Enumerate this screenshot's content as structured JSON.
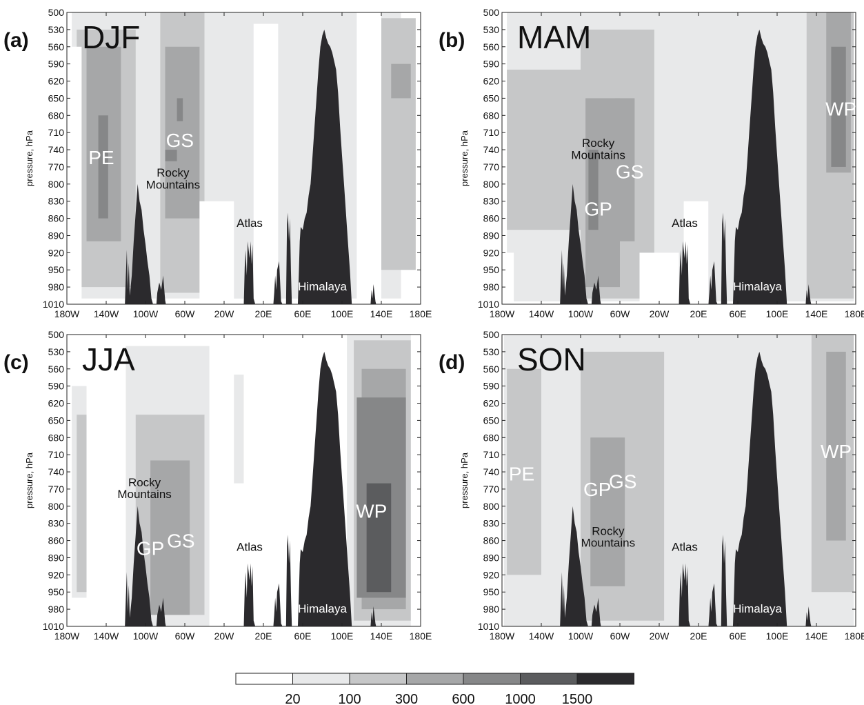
{
  "colors": {
    "levels": [
      "#ffffff",
      "#e8e9ea",
      "#c6c7c8",
      "#a6a7a8",
      "#868788",
      "#5b5c5e",
      "#2b2a2d"
    ],
    "terrain": "#2b2a2d"
  },
  "legend": {
    "ticks": [
      "20",
      "100",
      "300",
      "600",
      "1000",
      "1500"
    ]
  },
  "chart_data": [
    {
      "type": "heatmap",
      "panel_label": "(a)",
      "season": "DJF",
      "ylabel": "pressure, hPa",
      "xlim": [
        -180,
        180
      ],
      "ylim": [
        1010,
        500
      ],
      "y_ticks": [
        "500",
        "530",
        "560",
        "590",
        "620",
        "650",
        "680",
        "710",
        "740",
        "770",
        "800",
        "830",
        "860",
        "890",
        "920",
        "950",
        "980",
        "1010"
      ],
      "x_ticks": [
        "180W",
        "140W",
        "100W",
        "60W",
        "20W",
        "20E",
        "60E",
        "100E",
        "140E",
        "180E"
      ],
      "x_tick_values": [
        -180,
        -140,
        -100,
        -60,
        -20,
        20,
        60,
        100,
        140,
        180
      ],
      "levels": [
        "20",
        "100",
        "300",
        "600",
        "1000",
        "1500"
      ],
      "labels": [
        {
          "text": "PE",
          "lon": -145,
          "p": 765,
          "color": "white",
          "big": true
        },
        {
          "text": "GS",
          "lon": -65,
          "p": 735,
          "color": "white",
          "big": true
        },
        {
          "text": "Rocky",
          "lon": -72,
          "p": 787,
          "color": "black",
          "big": false
        },
        {
          "text": "Mountains",
          "lon": -72,
          "p": 808,
          "color": "black",
          "big": false
        },
        {
          "text": "Atlas",
          "lon": 6,
          "p": 875,
          "color": "black",
          "big": false
        },
        {
          "text": "Himalaya",
          "lon": 80,
          "p": 986,
          "color": "white",
          "big": false
        }
      ],
      "regions": [
        {
          "lon": [
            -175,
            160
          ],
          "p": [
            500,
            1000
          ],
          "level": 1
        },
        {
          "lon": [
            -170,
            -110
          ],
          "p": [
            530,
            980
          ],
          "level": 2
        },
        {
          "lon": [
            -85,
            -35
          ],
          "p": [
            500,
            990
          ],
          "level": 2
        },
        {
          "lon": [
            135,
            175
          ],
          "p": [
            510,
            950
          ],
          "level": 2
        },
        {
          "lon": [
            -160,
            -125
          ],
          "p": [
            560,
            900
          ],
          "level": 3
        },
        {
          "lon": [
            -80,
            -45
          ],
          "p": [
            560,
            860
          ],
          "level": 3
        },
        {
          "lon": [
            150,
            170
          ],
          "p": [
            590,
            650
          ],
          "level": 3
        },
        {
          "lon": [
            -148,
            -138
          ],
          "p": [
            680,
            860
          ],
          "level": 4
        },
        {
          "lon": [
            -68,
            -62
          ],
          "p": [
            650,
            690
          ],
          "level": 4
        },
        {
          "lon": [
            -80,
            -68
          ],
          "p": [
            740,
            760
          ],
          "level": 4
        },
        {
          "lon": [
            -40,
            5
          ],
          "p": [
            500,
            1000
          ],
          "level": 1
        },
        {
          "lon": [
            35,
            75
          ],
          "p": [
            660,
            1000
          ],
          "level": 1
        }
      ],
      "blank": [
        {
          "lon": [
            10,
            35
          ],
          "p": [
            520,
            1010
          ]
        },
        {
          "lon": [
            115,
            140
          ],
          "p": [
            500,
            1010
          ]
        },
        {
          "lon": [
            -45,
            -10
          ],
          "p": [
            830,
            1010
          ]
        },
        {
          "lon": [
            -178,
            -165
          ],
          "p": [
            560,
            1010
          ]
        }
      ]
    },
    {
      "type": "heatmap",
      "panel_label": "(b)",
      "season": "MAM",
      "ylabel": "pressure, hPa",
      "xlim": [
        -180,
        180
      ],
      "ylim": [
        1010,
        500
      ],
      "y_ticks": [
        "500",
        "530",
        "560",
        "590",
        "620",
        "650",
        "680",
        "710",
        "740",
        "770",
        "800",
        "830",
        "860",
        "890",
        "920",
        "950",
        "980",
        "1010"
      ],
      "x_ticks": [
        "180W",
        "140W",
        "100W",
        "60W",
        "20W",
        "20E",
        "60E",
        "100E",
        "140E",
        "180E"
      ],
      "x_tick_values": [
        -180,
        -140,
        -100,
        -60,
        -20,
        20,
        60,
        100,
        140,
        180
      ],
      "levels": [
        "20",
        "100",
        "300",
        "600",
        "1000",
        "1500"
      ],
      "labels": [
        {
          "text": "WP",
          "lon": 165,
          "p": 680,
          "color": "white",
          "big": true
        },
        {
          "text": "Rocky",
          "lon": -82,
          "p": 735,
          "color": "black",
          "big": false
        },
        {
          "text": "Mountains",
          "lon": -82,
          "p": 756,
          "color": "black",
          "big": false
        },
        {
          "text": "GS",
          "lon": -50,
          "p": 790,
          "color": "white",
          "big": true
        },
        {
          "text": "GP",
          "lon": -82,
          "p": 855,
          "color": "white",
          "big": true
        },
        {
          "text": "Atlas",
          "lon": 6,
          "p": 875,
          "color": "black",
          "big": false
        },
        {
          "text": "Himalaya",
          "lon": 80,
          "p": 986,
          "color": "white",
          "big": false
        }
      ],
      "regions": [
        {
          "lon": [
            -175,
            178
          ],
          "p": [
            500,
            1005
          ],
          "level": 1
        },
        {
          "lon": [
            -175,
            -95
          ],
          "p": [
            600,
            880
          ],
          "level": 2
        },
        {
          "lon": [
            -100,
            -25
          ],
          "p": [
            530,
            1000
          ],
          "level": 2
        },
        {
          "lon": [
            130,
            178
          ],
          "p": [
            500,
            1000
          ],
          "level": 2
        },
        {
          "lon": [
            -95,
            -60
          ],
          "p": [
            650,
            980
          ],
          "level": 3
        },
        {
          "lon": [
            -65,
            -45
          ],
          "p": [
            650,
            900
          ],
          "level": 3
        },
        {
          "lon": [
            150,
            175
          ],
          "p": [
            500,
            780
          ],
          "level": 3
        },
        {
          "lon": [
            -92,
            -82
          ],
          "p": [
            740,
            880
          ],
          "level": 4
        },
        {
          "lon": [
            155,
            170
          ],
          "p": [
            560,
            770
          ],
          "level": 4
        }
      ],
      "blank": [
        {
          "lon": [
            5,
            30
          ],
          "p": [
            830,
            1010
          ]
        },
        {
          "lon": [
            -178,
            -168
          ],
          "p": [
            920,
            1010
          ]
        },
        {
          "lon": [
            -40,
            0
          ],
          "p": [
            920,
            1010
          ]
        }
      ]
    },
    {
      "type": "heatmap",
      "panel_label": "(c)",
      "season": "JJA",
      "ylabel": "pressure, hPa",
      "xlim": [
        -180,
        180
      ],
      "ylim": [
        1010,
        500
      ],
      "y_ticks": [
        "500",
        "530",
        "560",
        "590",
        "620",
        "650",
        "680",
        "710",
        "740",
        "770",
        "800",
        "830",
        "860",
        "890",
        "920",
        "950",
        "980",
        "1010"
      ],
      "x_ticks": [
        "180W",
        "140W",
        "100W",
        "60W",
        "20W",
        "20E",
        "60E",
        "100E",
        "140E",
        "180E"
      ],
      "x_tick_values": [
        -180,
        -140,
        -100,
        -60,
        -20,
        20,
        60,
        100,
        140,
        180
      ],
      "levels": [
        "20",
        "100",
        "300",
        "600",
        "1000",
        "1500"
      ],
      "labels": [
        {
          "text": "Rocky",
          "lon": -101,
          "p": 765,
          "color": "black",
          "big": false
        },
        {
          "text": "Mountains",
          "lon": -101,
          "p": 786,
          "color": "black",
          "big": false
        },
        {
          "text": "GP",
          "lon": -95,
          "p": 885,
          "color": "white",
          "big": true
        },
        {
          "text": "GS",
          "lon": -64,
          "p": 872,
          "color": "white",
          "big": true
        },
        {
          "text": "Atlas",
          "lon": 6,
          "p": 878,
          "color": "black",
          "big": false
        },
        {
          "text": "WP",
          "lon": 130,
          "p": 820,
          "color": "white",
          "big": true
        },
        {
          "text": "Himalaya",
          "lon": 80,
          "p": 986,
          "color": "white",
          "big": false
        }
      ],
      "regions": [
        {
          "lon": [
            -175,
            -160
          ],
          "p": [
            590,
            960
          ],
          "level": 1
        },
        {
          "lon": [
            -170,
            -160
          ],
          "p": [
            640,
            950
          ],
          "level": 2
        },
        {
          "lon": [
            -120,
            -35
          ],
          "p": [
            520,
            1010
          ],
          "level": 1
        },
        {
          "lon": [
            -10,
            0
          ],
          "p": [
            570,
            760
          ],
          "level": 1
        },
        {
          "lon": [
            -110,
            -40
          ],
          "p": [
            640,
            990
          ],
          "level": 2
        },
        {
          "lon": [
            -95,
            -55
          ],
          "p": [
            720,
            990
          ],
          "level": 3
        },
        {
          "lon": [
            105,
            170
          ],
          "p": [
            500,
            1010
          ],
          "level": 1
        },
        {
          "lon": [
            112,
            170
          ],
          "p": [
            510,
            1000
          ],
          "level": 2
        },
        {
          "lon": [
            120,
            165
          ],
          "p": [
            560,
            980
          ],
          "level": 3
        },
        {
          "lon": [
            115,
            165
          ],
          "p": [
            610,
            960
          ],
          "level": 4
        },
        {
          "lon": [
            125,
            150
          ],
          "p": [
            760,
            950
          ],
          "level": 5
        }
      ],
      "blank": []
    },
    {
      "type": "heatmap",
      "panel_label": "(d)",
      "season": "SON",
      "ylabel": "pressure, hPa",
      "xlim": [
        -180,
        180
      ],
      "ylim": [
        1010,
        500
      ],
      "y_ticks": [
        "500",
        "530",
        "560",
        "590",
        "620",
        "650",
        "680",
        "710",
        "740",
        "770",
        "800",
        "830",
        "860",
        "890",
        "920",
        "950",
        "980",
        "1010"
      ],
      "x_ticks": [
        "180W",
        "140W",
        "100W",
        "60W",
        "20W",
        "20E",
        "60E",
        "100E",
        "140E",
        "180E"
      ],
      "x_tick_values": [
        -180,
        -140,
        -100,
        -60,
        -20,
        20,
        60,
        100,
        140,
        180
      ],
      "levels": [
        "20",
        "100",
        "300",
        "600",
        "1000",
        "1500"
      ],
      "labels": [
        {
          "text": "PE",
          "lon": -160,
          "p": 755,
          "color": "white",
          "big": true
        },
        {
          "text": "GP",
          "lon": -83,
          "p": 782,
          "color": "white",
          "big": true
        },
        {
          "text": "GS",
          "lon": -57,
          "p": 768,
          "color": "white",
          "big": true
        },
        {
          "text": "Rocky",
          "lon": -72,
          "p": 850,
          "color": "black",
          "big": false
        },
        {
          "text": "Mountains",
          "lon": -72,
          "p": 871,
          "color": "black",
          "big": false
        },
        {
          "text": "Atlas",
          "lon": 6,
          "p": 878,
          "color": "black",
          "big": false
        },
        {
          "text": "WP",
          "lon": 160,
          "p": 716,
          "color": "white",
          "big": true
        },
        {
          "text": "Himalaya",
          "lon": 80,
          "p": 986,
          "color": "white",
          "big": false
        }
      ],
      "regions": [
        {
          "lon": [
            -178,
            178
          ],
          "p": [
            500,
            1010
          ],
          "level": 1
        },
        {
          "lon": [
            -175,
            -140
          ],
          "p": [
            560,
            920
          ],
          "level": 2
        },
        {
          "lon": [
            -100,
            -15
          ],
          "p": [
            530,
            1000
          ],
          "level": 2
        },
        {
          "lon": [
            135,
            178
          ],
          "p": [
            500,
            950
          ],
          "level": 2
        },
        {
          "lon": [
            -90,
            -55
          ],
          "p": [
            680,
            940
          ],
          "level": 3
        },
        {
          "lon": [
            150,
            170
          ],
          "p": [
            530,
            860
          ],
          "level": 3
        }
      ],
      "blank": []
    }
  ]
}
